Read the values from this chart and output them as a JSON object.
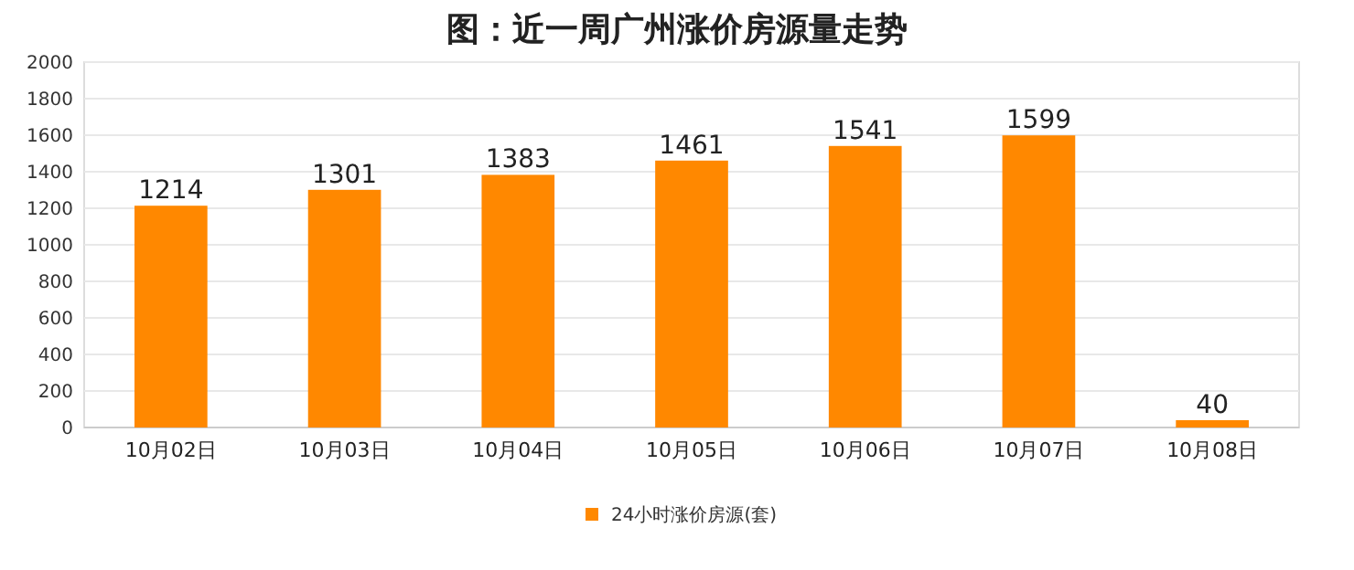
{
  "chart_data": {
    "type": "bar",
    "title": "图：近一周广州涨价房源量走势",
    "categories": [
      "10月02日",
      "10月03日",
      "10月04日",
      "10月05日",
      "10月06日",
      "10月07日",
      "10月08日"
    ],
    "series": [
      {
        "name": "24小时涨价房源(套)",
        "color": "#ff8800",
        "values": [
          1214,
          1301,
          1383,
          1461,
          1541,
          1599,
          40
        ]
      }
    ],
    "ylim": [
      0,
      2000
    ],
    "yticks": [
      0,
      200,
      400,
      600,
      800,
      1000,
      1200,
      1400,
      1600,
      1800,
      2000
    ],
    "grid": "y",
    "legend": "bottom",
    "data_labels": true
  }
}
